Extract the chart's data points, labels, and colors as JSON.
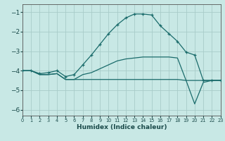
{
  "xlabel": "Humidex (Indice chaleur)",
  "xlim": [
    0,
    23
  ],
  "ylim": [
    -6.3,
    -0.6
  ],
  "yticks": [
    -6,
    -5,
    -4,
    -3,
    -2,
    -1
  ],
  "xticks": [
    0,
    1,
    2,
    3,
    4,
    5,
    6,
    7,
    8,
    9,
    10,
    11,
    12,
    13,
    14,
    15,
    16,
    17,
    18,
    19,
    20,
    21,
    22,
    23
  ],
  "background_color": "#c8e8e5",
  "grid_color": "#a8ccc9",
  "line_color": "#1a6b6b",
  "lines": [
    {
      "x": [
        0,
        1,
        2,
        3,
        4,
        5,
        6,
        7,
        8,
        9,
        10,
        11,
        12,
        13,
        14,
        15,
        16,
        17,
        18,
        19,
        20,
        21,
        22,
        23
      ],
      "y": [
        -4.0,
        -4.0,
        -4.2,
        -4.2,
        -4.15,
        -4.45,
        -4.45,
        -4.45,
        -4.45,
        -4.45,
        -4.45,
        -4.45,
        -4.45,
        -4.45,
        -4.45,
        -4.45,
        -4.45,
        -4.45,
        -4.45,
        -4.5,
        -4.5,
        -4.5,
        -4.5,
        -4.5
      ],
      "marker": null,
      "linewidth": 0.9
    },
    {
      "x": [
        0,
        1,
        2,
        3,
        4,
        5,
        6,
        7,
        8,
        9,
        10,
        11,
        12,
        13,
        14,
        15,
        16,
        17,
        18,
        19,
        20,
        21,
        22,
        23
      ],
      "y": [
        -4.0,
        -4.0,
        -4.2,
        -4.2,
        -4.15,
        -4.45,
        -4.45,
        -4.2,
        -4.1,
        -3.9,
        -3.7,
        -3.5,
        -3.4,
        -3.35,
        -3.3,
        -3.3,
        -3.3,
        -3.3,
        -3.35,
        -4.5,
        -5.7,
        -4.6,
        -4.5,
        -4.5
      ],
      "marker": null,
      "linewidth": 0.9
    },
    {
      "x": [
        0,
        1,
        2,
        3,
        4,
        5,
        6,
        7,
        8,
        9,
        10,
        11,
        12,
        13,
        14,
        15,
        16,
        17,
        18,
        19,
        20,
        21,
        22,
        23
      ],
      "y": [
        -4.0,
        -4.0,
        -4.15,
        -4.1,
        -4.0,
        -4.3,
        -4.2,
        -3.7,
        -3.2,
        -2.65,
        -2.1,
        -1.65,
        -1.3,
        -1.1,
        -1.1,
        -1.15,
        -1.7,
        -2.1,
        -2.5,
        -3.05,
        -3.2,
        -4.5,
        -4.5,
        -4.5
      ],
      "marker": "+",
      "linewidth": 0.9
    }
  ]
}
